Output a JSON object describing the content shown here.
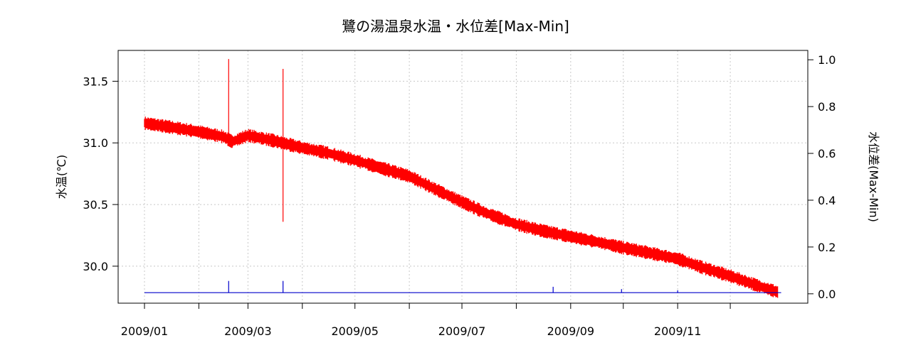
{
  "chart_data": {
    "type": "line",
    "title": "鷺の湯温泉水温・水位差[Max-Min]",
    "ylabel_left": "水温(℃)",
    "ylabel_right": "水位差(Max-Min)",
    "x_ticks": [
      "2009/01",
      "",
      "2009/03",
      "",
      "2009/05",
      "",
      "2009/07",
      "",
      "2009/09",
      "",
      "2009/11",
      ""
    ],
    "x_range": [
      "2009/01/01",
      "2009/12/31"
    ],
    "y_left_ticks": [
      "30.0",
      "30.5",
      "31.0",
      "31.5"
    ],
    "y_left_range": [
      29.7,
      31.75
    ],
    "y_right_ticks": [
      "0.0",
      "0.2",
      "0.4",
      "0.6",
      "0.8",
      "1.0"
    ],
    "y_right_range": [
      -0.04,
      1.04
    ],
    "grid": true,
    "series": [
      {
        "axis": "left",
        "color": "#ff0000",
        "band_halfwidth": 0.045,
        "x": [
          "2009-01-01",
          "2009-01-15",
          "2009-02-01",
          "2009-02-15",
          "2009-02-20",
          "2009-03-01",
          "2009-03-15",
          "2009-04-01",
          "2009-04-15",
          "2009-05-01",
          "2009-05-15",
          "2009-06-01",
          "2009-06-15",
          "2009-07-01",
          "2009-07-15",
          "2009-08-01",
          "2009-08-15",
          "2009-09-01",
          "2009-09-15",
          "2009-10-01",
          "2009-10-15",
          "2009-11-01",
          "2009-11-15",
          "2009-12-01",
          "2009-12-15",
          "2009-12-28"
        ],
        "y": [
          31.16,
          31.13,
          31.09,
          31.05,
          31.01,
          31.06,
          31.02,
          30.96,
          30.92,
          30.86,
          30.8,
          30.73,
          30.63,
          30.52,
          30.43,
          30.34,
          30.29,
          30.24,
          30.2,
          30.15,
          30.11,
          30.06,
          29.99,
          29.92,
          29.85,
          29.79
        ],
        "spikes": [
          {
            "x": "2009-02-18",
            "y_min": 31.0,
            "y_max": 31.68
          },
          {
            "x": "2009-03-21",
            "y_min": 30.36,
            "y_max": 31.6
          }
        ]
      },
      {
        "axis": "right",
        "color": "#0000cc",
        "x": [
          "2009-01-01",
          "2009-12-30"
        ],
        "y": [
          0.005,
          0.005
        ],
        "spikes": [
          {
            "x": "2009-02-18",
            "y_min": 0.005,
            "y_max": 0.055
          },
          {
            "x": "2009-03-21",
            "y_min": 0.005,
            "y_max": 0.055
          },
          {
            "x": "2009-08-22",
            "y_min": 0.005,
            "y_max": 0.03
          },
          {
            "x": "2009-09-30",
            "y_min": 0.005,
            "y_max": 0.02
          },
          {
            "x": "2009-11-01",
            "y_min": 0.005,
            "y_max": 0.015
          }
        ]
      }
    ]
  }
}
